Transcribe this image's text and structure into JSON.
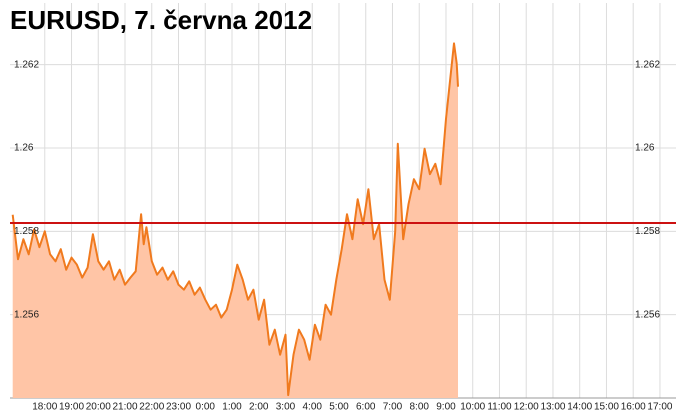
{
  "chart_data": {
    "type": "area",
    "title": "EURUSD, 7. června 2012",
    "x": [
      -1.2,
      -1.0,
      -0.8,
      -0.6,
      -0.4,
      -0.2,
      0,
      0.2,
      0.4,
      0.6,
      0.8,
      1.0,
      1.2,
      1.4,
      1.6,
      1.8,
      2.0,
      2.2,
      2.4,
      2.6,
      2.8,
      3.0,
      3.2,
      3.4,
      3.6,
      3.7,
      3.8,
      4.0,
      4.2,
      4.4,
      4.6,
      4.8,
      5.0,
      5.2,
      5.4,
      5.6,
      5.8,
      6.0,
      6.2,
      6.4,
      6.6,
      6.8,
      7.0,
      7.2,
      7.4,
      7.6,
      7.8,
      8.0,
      8.2,
      8.4,
      8.6,
      8.8,
      9.0,
      9.1,
      9.3,
      9.5,
      9.7,
      9.9,
      10.1,
      10.3,
      10.5,
      10.7,
      10.9,
      11.1,
      11.3,
      11.5,
      11.7,
      11.9,
      12.1,
      12.3,
      12.5,
      12.7,
      12.9,
      13.1,
      13.2,
      13.4,
      13.6,
      13.8,
      14.0,
      14.2,
      14.4,
      14.6,
      14.8,
      15.0,
      15.2,
      15.3,
      15.4,
      15.45
    ],
    "series": [
      {
        "name": "EURUSD",
        "color": "#f07a1e",
        "fill": "#ffc5a6",
        "values": [
          1.2584,
          1.25733,
          1.25781,
          1.25745,
          1.25805,
          1.25762,
          1.258,
          1.25745,
          1.25728,
          1.25757,
          1.25708,
          1.25737,
          1.2572,
          1.25689,
          1.25713,
          1.25793,
          1.25728,
          1.25708,
          1.25728,
          1.25684,
          1.25708,
          1.25672,
          1.25689,
          1.25704,
          1.25841,
          1.25769,
          1.2581,
          1.25728,
          1.25696,
          1.25713,
          1.25684,
          1.25704,
          1.25672,
          1.2566,
          1.2568,
          1.25648,
          1.25665,
          1.25636,
          1.25612,
          1.25624,
          1.25593,
          1.25612,
          1.2566,
          1.2572,
          1.25684,
          1.25636,
          1.2566,
          1.25588,
          1.25636,
          1.25528,
          1.25564,
          1.25504,
          1.25552,
          1.25407,
          1.25504,
          1.25564,
          1.2554,
          1.25492,
          1.25576,
          1.2554,
          1.25624,
          1.256,
          1.25684,
          1.25757,
          1.25841,
          1.25781,
          1.25877,
          1.25817,
          1.25901,
          1.25781,
          1.25817,
          1.25684,
          1.25636,
          1.258,
          1.2601,
          1.25781,
          1.25865,
          1.25925,
          1.25901,
          1.25998,
          1.25937,
          1.25962,
          1.25913,
          1.2607,
          1.2619,
          1.26251,
          1.26203,
          1.26147
        ]
      }
    ],
    "reference_line": {
      "value": 1.2582,
      "color": "#cc1111"
    },
    "xlim": [
      -1.3,
      23.6
    ],
    "ylim": [
      1.254,
      1.263
    ],
    "xticks": [
      {
        "value": 0,
        "label": "18:00"
      },
      {
        "value": 1,
        "label": "19:00"
      },
      {
        "value": 2,
        "label": "20:00"
      },
      {
        "value": 3,
        "label": "21:00"
      },
      {
        "value": 4,
        "label": "22:00"
      },
      {
        "value": 5,
        "label": "23:00"
      },
      {
        "value": 6,
        "label": "0:00"
      },
      {
        "value": 7,
        "label": "1:00"
      },
      {
        "value": 8,
        "label": "2:00"
      },
      {
        "value": 9,
        "label": "3:00"
      },
      {
        "value": 10,
        "label": "4:00"
      },
      {
        "value": 11,
        "label": "5:00"
      },
      {
        "value": 12,
        "label": "6:00"
      },
      {
        "value": 13,
        "label": "7:00"
      },
      {
        "value": 14,
        "label": "8:00"
      },
      {
        "value": 15,
        "label": "9:00"
      },
      {
        "value": 16,
        "label": "10:00"
      },
      {
        "value": 17,
        "label": "11:00"
      },
      {
        "value": 18,
        "label": "12:00"
      },
      {
        "value": 19,
        "label": "13:00"
      },
      {
        "value": 20,
        "label": "14:00"
      },
      {
        "value": 21,
        "label": "15:00"
      },
      {
        "value": 22,
        "label": "16:00"
      },
      {
        "value": 23,
        "label": "17:00"
      }
    ],
    "yticks": [
      1.256,
      1.258,
      1.26,
      1.262
    ],
    "grid": true
  }
}
